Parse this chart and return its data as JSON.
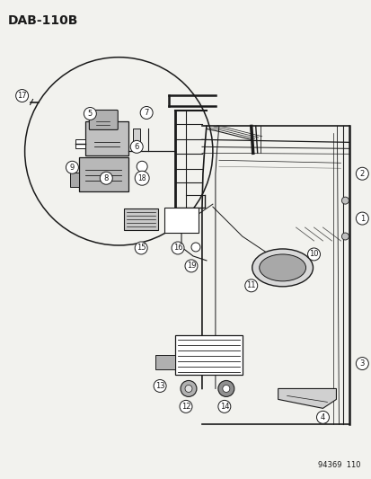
{
  "title": "DAB−110B",
  "background_color": "#f2f2ee",
  "diagram_color": "#1a1a1a",
  "watermark": "94369  110",
  "fig_w": 4.14,
  "fig_h": 5.33,
  "dpi": 100
}
